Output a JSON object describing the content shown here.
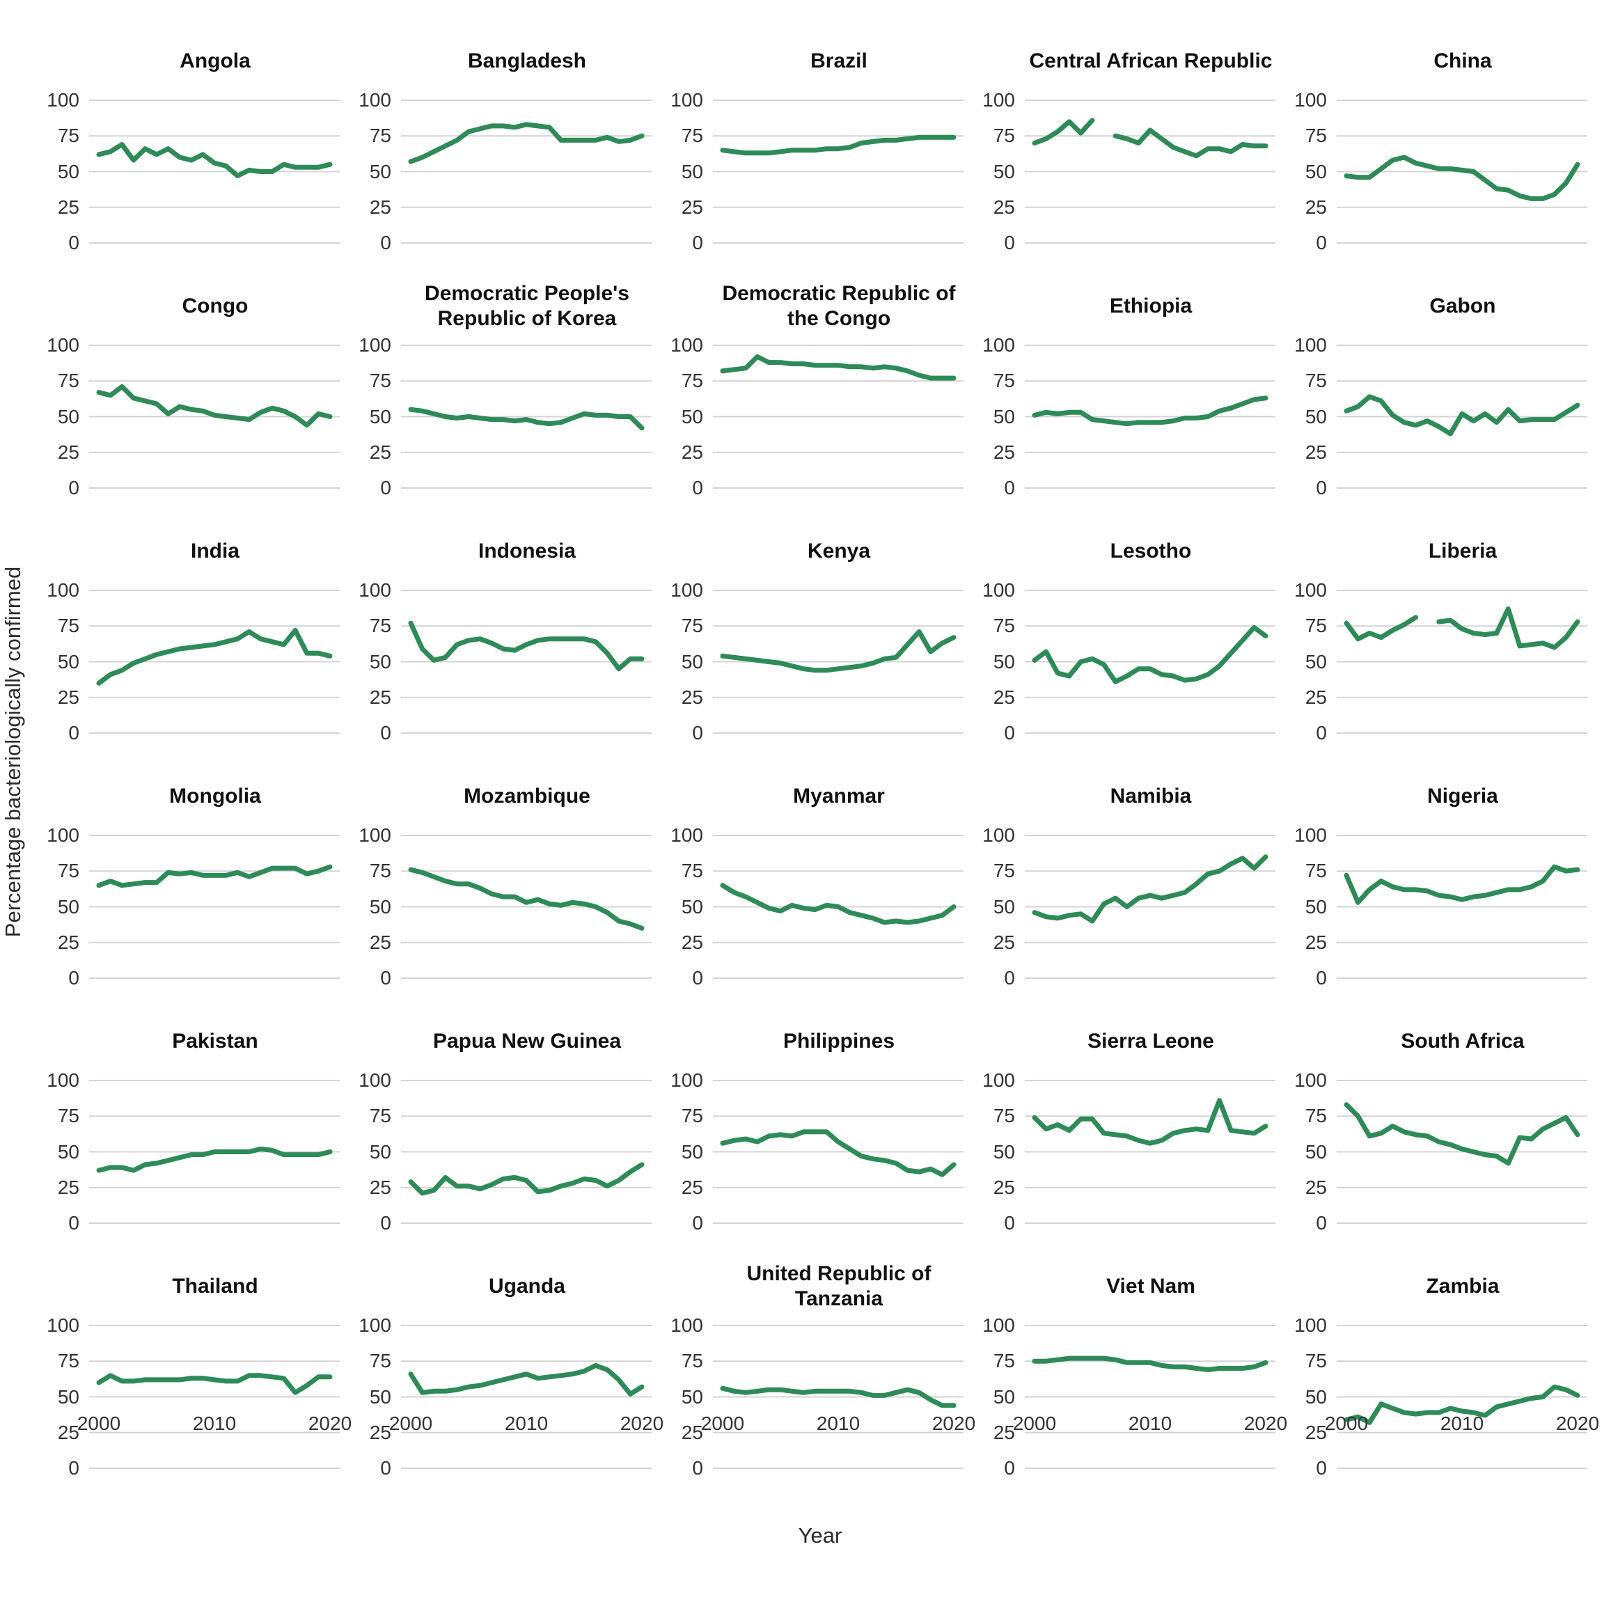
{
  "figure": {
    "y_axis_title": "Percentage bacteriologically confirmed",
    "x_axis_title": "Year",
    "line_color": "#2e8b57",
    "grid_color": "#d4d4d4",
    "background_color": "#ffffff",
    "title_color": "#111111",
    "tick_label_color": "#333333"
  },
  "chart_data": {
    "type": "line",
    "facets": true,
    "grid": "horizontal gridlines only, light gray, no axis lines",
    "legend": "none",
    "xlabel": "Year",
    "ylabel": "Percentage bacteriologically confirmed",
    "x": [
      2000,
      2001,
      2002,
      2003,
      2004,
      2005,
      2006,
      2007,
      2008,
      2009,
      2010,
      2011,
      2012,
      2013,
      2014,
      2015,
      2016,
      2017,
      2018,
      2019,
      2020
    ],
    "x_ticks": [
      2000,
      2010,
      2020
    ],
    "y_ticks": [
      0,
      25,
      50,
      75,
      100
    ],
    "ylim": [
      0,
      100
    ],
    "xlim": [
      2000,
      2020
    ],
    "series": [
      {
        "name": "Angola",
        "values": [
          62,
          64,
          69,
          58,
          66,
          62,
          66,
          60,
          58,
          62,
          56,
          54,
          47,
          51,
          50,
          50,
          55,
          53,
          53,
          53,
          55
        ]
      },
      {
        "name": "Bangladesh",
        "values": [
          57,
          60,
          64,
          68,
          72,
          78,
          80,
          82,
          82,
          81,
          83,
          82,
          81,
          72,
          72,
          72,
          72,
          74,
          71,
          72,
          75
        ]
      },
      {
        "name": "Brazil",
        "values": [
          65,
          64,
          63,
          63,
          63,
          64,
          65,
          65,
          65,
          66,
          66,
          67,
          70,
          71,
          72,
          72,
          73,
          74,
          74,
          74,
          74
        ]
      },
      {
        "name": "Central African Republic",
        "values": [
          70,
          73,
          78,
          85,
          77,
          86,
          null,
          75,
          73,
          70,
          79,
          73,
          67,
          64,
          61,
          66,
          66,
          64,
          69,
          68,
          68
        ]
      },
      {
        "name": "China",
        "values": [
          47,
          46,
          46,
          52,
          58,
          60,
          56,
          54,
          52,
          52,
          51,
          50,
          44,
          38,
          37,
          33,
          31,
          31,
          34,
          42,
          55
        ]
      },
      {
        "name": "Congo",
        "values": [
          67,
          65,
          71,
          63,
          61,
          59,
          52,
          57,
          55,
          54,
          51,
          50,
          49,
          48,
          53,
          56,
          54,
          50,
          44,
          52,
          50
        ]
      },
      {
        "name": "Democratic People's Republic of Korea",
        "values": [
          55,
          54,
          52,
          50,
          49,
          50,
          49,
          48,
          48,
          47,
          48,
          46,
          45,
          46,
          49,
          52,
          51,
          51,
          50,
          50,
          42
        ]
      },
      {
        "name": "Democratic Republic of the Congo",
        "values": [
          82,
          83,
          84,
          92,
          88,
          88,
          87,
          87,
          86,
          86,
          86,
          85,
          85,
          84,
          85,
          84,
          82,
          79,
          77,
          77,
          77
        ]
      },
      {
        "name": "Ethiopia",
        "values": [
          51,
          53,
          52,
          53,
          53,
          48,
          47,
          46,
          45,
          46,
          46,
          46,
          47,
          49,
          49,
          50,
          54,
          56,
          59,
          62,
          63
        ]
      },
      {
        "name": "Gabon",
        "values": [
          54,
          57,
          64,
          61,
          51,
          46,
          44,
          47,
          43,
          38,
          52,
          47,
          52,
          46,
          55,
          47,
          48,
          48,
          48,
          53,
          58
        ]
      },
      {
        "name": "India",
        "values": [
          35,
          41,
          44,
          49,
          52,
          55,
          57,
          59,
          60,
          61,
          62,
          64,
          66,
          71,
          66,
          64,
          62,
          72,
          56,
          56,
          54
        ]
      },
      {
        "name": "Indonesia",
        "values": [
          77,
          59,
          51,
          53,
          62,
          65,
          66,
          63,
          59,
          58,
          62,
          65,
          66,
          66,
          66,
          66,
          64,
          56,
          45,
          52,
          52
        ]
      },
      {
        "name": "Kenya",
        "values": [
          54,
          53,
          52,
          51,
          50,
          49,
          47,
          45,
          44,
          44,
          45,
          46,
          47,
          49,
          52,
          53,
          62,
          71,
          57,
          63,
          67
        ]
      },
      {
        "name": "Lesotho",
        "values": [
          51,
          57,
          42,
          40,
          50,
          52,
          48,
          36,
          40,
          45,
          45,
          41,
          40,
          37,
          38,
          41,
          47,
          56,
          65,
          74,
          68
        ]
      },
      {
        "name": "Liberia",
        "values": [
          77,
          66,
          70,
          67,
          72,
          76,
          81,
          null,
          78,
          79,
          73,
          70,
          69,
          70,
          87,
          61,
          62,
          63,
          60,
          67,
          78
        ]
      },
      {
        "name": "Mongolia",
        "values": [
          65,
          68,
          65,
          66,
          67,
          67,
          74,
          73,
          74,
          72,
          72,
          72,
          74,
          71,
          74,
          77,
          77,
          77,
          73,
          75,
          78
        ]
      },
      {
        "name": "Mozambique",
        "values": [
          76,
          74,
          71,
          68,
          66,
          66,
          63,
          59,
          57,
          57,
          53,
          55,
          52,
          51,
          53,
          52,
          50,
          46,
          40,
          38,
          35
        ]
      },
      {
        "name": "Myanmar",
        "values": [
          65,
          60,
          57,
          53,
          49,
          47,
          51,
          49,
          48,
          51,
          50,
          46,
          44,
          42,
          39,
          40,
          39,
          40,
          42,
          44,
          50
        ]
      },
      {
        "name": "Namibia",
        "values": [
          46,
          43,
          42,
          44,
          45,
          40,
          52,
          56,
          50,
          56,
          58,
          56,
          58,
          60,
          66,
          73,
          75,
          80,
          84,
          77,
          85
        ]
      },
      {
        "name": "Nigeria",
        "values": [
          72,
          53,
          62,
          68,
          64,
          62,
          62,
          61,
          58,
          57,
          55,
          57,
          58,
          60,
          62,
          62,
          64,
          68,
          78,
          75,
          76
        ]
      },
      {
        "name": "Pakistan",
        "values": [
          37,
          39,
          39,
          37,
          41,
          42,
          44,
          46,
          48,
          48,
          50,
          50,
          50,
          50,
          52,
          51,
          48,
          48,
          48,
          48,
          50
        ]
      },
      {
        "name": "Papua New Guinea",
        "values": [
          29,
          21,
          23,
          32,
          26,
          26,
          24,
          27,
          31,
          32,
          30,
          22,
          23,
          26,
          28,
          31,
          30,
          26,
          30,
          36,
          41
        ]
      },
      {
        "name": "Philippines",
        "values": [
          56,
          58,
          59,
          57,
          61,
          62,
          61,
          64,
          64,
          64,
          57,
          52,
          47,
          45,
          44,
          42,
          37,
          36,
          38,
          34,
          41
        ]
      },
      {
        "name": "Sierra Leone",
        "values": [
          74,
          66,
          69,
          65,
          73,
          73,
          63,
          62,
          61,
          58,
          56,
          58,
          63,
          65,
          66,
          65,
          86,
          65,
          64,
          63,
          68
        ]
      },
      {
        "name": "South Africa",
        "values": [
          83,
          75,
          61,
          63,
          68,
          64,
          62,
          61,
          57,
          55,
          52,
          50,
          48,
          47,
          42,
          60,
          59,
          66,
          70,
          74,
          62
        ]
      },
      {
        "name": "Thailand",
        "values": [
          60,
          65,
          61,
          61,
          62,
          62,
          62,
          62,
          63,
          63,
          62,
          61,
          61,
          65,
          65,
          64,
          63,
          53,
          58,
          64,
          64
        ]
      },
      {
        "name": "Uganda",
        "values": [
          66,
          53,
          54,
          54,
          55,
          57,
          58,
          60,
          62,
          64,
          66,
          63,
          64,
          65,
          66,
          68,
          72,
          69,
          62,
          52,
          57
        ]
      },
      {
        "name": "United Republic of Tanzania",
        "values": [
          56,
          54,
          53,
          54,
          55,
          55,
          54,
          53,
          54,
          54,
          54,
          54,
          53,
          51,
          51,
          53,
          55,
          53,
          48,
          44,
          44
        ]
      },
      {
        "name": "Viet Nam",
        "values": [
          75,
          75,
          76,
          77,
          77,
          77,
          77,
          76,
          74,
          74,
          74,
          72,
          71,
          71,
          70,
          69,
          70,
          70,
          70,
          71,
          74
        ]
      },
      {
        "name": "Zambia",
        "values": [
          34,
          36,
          32,
          45,
          42,
          39,
          38,
          39,
          39,
          42,
          40,
          39,
          37,
          43,
          45,
          47,
          49,
          50,
          57,
          55,
          51
        ]
      }
    ]
  }
}
